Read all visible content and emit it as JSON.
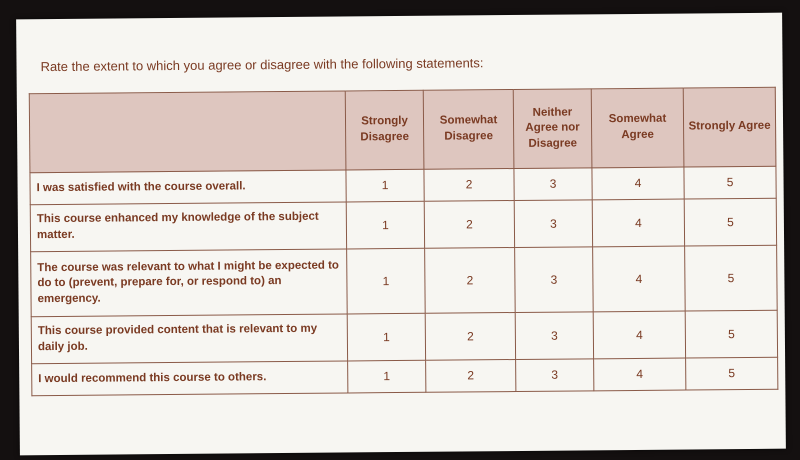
{
  "prompt": "Rate the extent to which you agree or disagree with the following statements:",
  "colors": {
    "header_bg": "#dec6bf",
    "text": "#7a3a22",
    "border": "#8a5a48"
  },
  "table": {
    "columns": [
      "Strongly Disagree",
      "Somewhat Disagree",
      "Neither Agree nor Disagree",
      "Somewhat Agree",
      "Strongly Agree"
    ],
    "rows": [
      {
        "statement": "I was satisfied with the course overall.",
        "values": [
          "1",
          "2",
          "3",
          "4",
          "5"
        ]
      },
      {
        "statement": "This course enhanced my knowledge of the subject matter.",
        "values": [
          "1",
          "2",
          "3",
          "4",
          "5"
        ]
      },
      {
        "statement": "The course was relevant to what I might be expected to do to (prevent, prepare for, or respond to) an emergency.",
        "values": [
          "1",
          "2",
          "3",
          "4",
          "5"
        ]
      },
      {
        "statement": "This course provided content that is relevant to my daily job.",
        "values": [
          "1",
          "2",
          "3",
          "4",
          "5"
        ]
      },
      {
        "statement": "I would recommend this course to others.",
        "values": [
          "1",
          "2",
          "3",
          "4",
          "5"
        ]
      }
    ]
  }
}
